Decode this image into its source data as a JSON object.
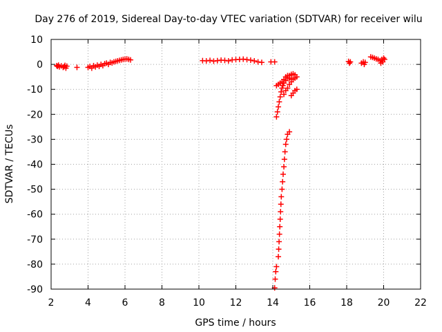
{
  "chart_data": {
    "type": "scatter",
    "title": "Day 276 of 2019, Sidereal Day-to-day VTEC variation (SDTVAR) for receiver wilu",
    "xlabel": "GPS time / hours",
    "ylabel": "SDTVAR / TECUs",
    "xlim": [
      2,
      22
    ],
    "ylim": [
      -90,
      10
    ],
    "xticks": [
      "2",
      "4",
      "6",
      "8",
      "10",
      "12",
      "14",
      "16",
      "18",
      "20",
      "22"
    ],
    "yticks": [
      "10",
      "0",
      "-10",
      "-20",
      "-30",
      "-40",
      "-50",
      "-60",
      "-70",
      "-80",
      "-90"
    ],
    "grid": true,
    "marker": "+",
    "color": "#ff0000",
    "series": [
      {
        "name": "SDTVAR",
        "points": [
          [
            2.3,
            -0.5
          ],
          [
            2.35,
            -0.8
          ],
          [
            2.4,
            -0.3
          ],
          [
            2.45,
            -1.0
          ],
          [
            2.55,
            -0.6
          ],
          [
            2.65,
            -1.2
          ],
          [
            2.7,
            -0.9
          ],
          [
            2.75,
            -0.4
          ],
          [
            2.8,
            -1.5
          ],
          [
            2.85,
            -0.7
          ],
          [
            3.4,
            -1.2
          ],
          [
            4.0,
            -1.2
          ],
          [
            4.1,
            -0.8
          ],
          [
            4.2,
            -1.5
          ],
          [
            4.3,
            -0.5
          ],
          [
            4.4,
            -1.0
          ],
          [
            4.5,
            -0.3
          ],
          [
            4.6,
            -0.8
          ],
          [
            4.7,
            0.0
          ],
          [
            4.8,
            -0.5
          ],
          [
            4.9,
            0.3
          ],
          [
            5.0,
            0.5
          ],
          [
            5.1,
            0.0
          ],
          [
            5.2,
            0.8
          ],
          [
            5.3,
            0.6
          ],
          [
            5.4,
            1.0
          ],
          [
            5.5,
            1.2
          ],
          [
            5.6,
            1.4
          ],
          [
            5.7,
            1.6
          ],
          [
            5.8,
            1.8
          ],
          [
            5.9,
            2.0
          ],
          [
            6.0,
            2.1
          ],
          [
            6.1,
            2.2
          ],
          [
            6.2,
            2.0
          ],
          [
            6.3,
            1.8
          ],
          [
            10.2,
            1.5
          ],
          [
            10.4,
            1.4
          ],
          [
            10.6,
            1.6
          ],
          [
            10.8,
            1.3
          ],
          [
            11.0,
            1.5
          ],
          [
            11.2,
            1.7
          ],
          [
            11.4,
            1.6
          ],
          [
            11.6,
            1.4
          ],
          [
            11.8,
            1.8
          ],
          [
            12.0,
            1.9
          ],
          [
            12.2,
            2.0
          ],
          [
            12.4,
            2.1
          ],
          [
            12.6,
            1.9
          ],
          [
            12.8,
            1.7
          ],
          [
            13.0,
            1.4
          ],
          [
            13.2,
            1.0
          ],
          [
            13.4,
            0.8
          ],
          [
            13.9,
            1.0
          ],
          [
            14.1,
            1.0
          ],
          [
            14.1,
            -89.5
          ],
          [
            14.13,
            -86
          ],
          [
            14.16,
            -83
          ],
          [
            14.2,
            -81
          ],
          [
            14.3,
            -77
          ],
          [
            14.32,
            -74
          ],
          [
            14.34,
            -71
          ],
          [
            14.36,
            -68
          ],
          [
            14.38,
            -65
          ],
          [
            14.4,
            -62
          ],
          [
            14.42,
            -59
          ],
          [
            14.44,
            -56
          ],
          [
            14.46,
            -53
          ],
          [
            14.5,
            -50
          ],
          [
            14.53,
            -47
          ],
          [
            14.56,
            -44
          ],
          [
            14.6,
            -41
          ],
          [
            14.63,
            -38
          ],
          [
            14.66,
            -35
          ],
          [
            14.7,
            -32
          ],
          [
            14.75,
            -30
          ],
          [
            14.8,
            -28
          ],
          [
            14.9,
            -27
          ],
          [
            14.2,
            -21
          ],
          [
            14.25,
            -19
          ],
          [
            14.3,
            -17
          ],
          [
            14.35,
            -15
          ],
          [
            14.4,
            -13
          ],
          [
            14.45,
            -11
          ],
          [
            14.5,
            -9.5
          ],
          [
            14.55,
            -8.5
          ],
          [
            14.6,
            -7.5
          ],
          [
            14.7,
            -6.5
          ],
          [
            14.8,
            -5.5
          ],
          [
            14.9,
            -4.5
          ],
          [
            15.0,
            -4.0
          ],
          [
            15.1,
            -3.8
          ],
          [
            15.2,
            -4.2
          ],
          [
            14.2,
            -8.5
          ],
          [
            14.3,
            -8.0
          ],
          [
            14.4,
            -7.5
          ],
          [
            14.5,
            -7.0
          ],
          [
            14.6,
            -6.0
          ],
          [
            14.7,
            -5.0
          ],
          [
            14.8,
            -4.5
          ],
          [
            14.9,
            -5.5
          ],
          [
            15.0,
            -6.0
          ],
          [
            14.6,
            -12
          ],
          [
            14.7,
            -10.5
          ],
          [
            14.8,
            -9.5
          ],
          [
            14.9,
            -8.0
          ],
          [
            15.0,
            -7.0
          ],
          [
            15.1,
            -6.0
          ],
          [
            15.2,
            -5.5
          ],
          [
            15.3,
            -5.0
          ],
          [
            15.0,
            -12.5
          ],
          [
            15.1,
            -11.5
          ],
          [
            15.2,
            -10.5
          ],
          [
            15.3,
            -10.0
          ],
          [
            18.1,
            1.2
          ],
          [
            18.15,
            0.5
          ],
          [
            18.2,
            1.0
          ],
          [
            18.8,
            0.5
          ],
          [
            18.9,
            1.0
          ],
          [
            18.95,
            0.0
          ],
          [
            19.0,
            0.8
          ],
          [
            19.3,
            3.0
          ],
          [
            19.4,
            2.8
          ],
          [
            19.5,
            2.5
          ],
          [
            19.6,
            2.2
          ],
          [
            19.7,
            2.0
          ],
          [
            19.8,
            1.5
          ],
          [
            19.85,
            0.5
          ],
          [
            19.9,
            2.0
          ],
          [
            19.95,
            1.0
          ],
          [
            20.0,
            2.5
          ],
          [
            20.05,
            2.0
          ]
        ]
      }
    ]
  }
}
